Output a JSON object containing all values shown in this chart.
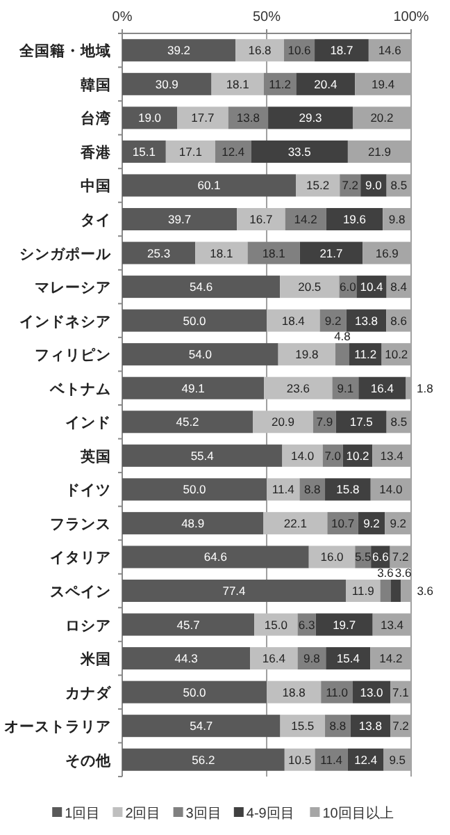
{
  "chart_data": {
    "type": "bar",
    "orientation": "horizontal",
    "stacked": true,
    "grid": "x",
    "legend": "bottom",
    "xlim": [
      0,
      100
    ],
    "xticks": [
      {
        "value": 0,
        "label": "0%"
      },
      {
        "value": 50,
        "label": "50%"
      },
      {
        "value": 100,
        "label": "100%"
      }
    ],
    "categories": [
      "全国籍・地域",
      "韓国",
      "台湾",
      "香港",
      "中国",
      "タイ",
      "シンガポール",
      "マレーシア",
      "インドネシア",
      "フィリピン",
      "ベトナム",
      "インド",
      "英国",
      "ドイツ",
      "フランス",
      "イタリア",
      "スペイン",
      "ロシア",
      "米国",
      "カナダ",
      "オーストラリア",
      "その他"
    ],
    "series": [
      {
        "name": "1回目",
        "color": "#595959",
        "values": [
          39.2,
          30.9,
          19.0,
          15.1,
          60.1,
          39.7,
          25.3,
          54.6,
          50.0,
          54.0,
          49.1,
          45.2,
          55.4,
          50.0,
          48.9,
          64.6,
          77.4,
          45.7,
          44.3,
          50.0,
          54.7,
          56.2
        ],
        "value_labels": [
          "39.2",
          "30.9",
          "19.0",
          "15.1",
          "60.1",
          "39.7",
          "25.3",
          "54.6",
          "50.0",
          "54.0",
          "49.1",
          "45.2",
          "55.4",
          "50.0",
          "48.9",
          "64.6",
          "77.4",
          "45.7",
          "44.3",
          "50.0",
          "54.7",
          "56.2"
        ]
      },
      {
        "name": "2回目",
        "color": "#bfbfbf",
        "values": [
          16.8,
          18.1,
          17.7,
          17.1,
          15.2,
          16.7,
          18.1,
          20.5,
          18.4,
          19.8,
          23.6,
          20.9,
          14.0,
          11.4,
          22.1,
          16.0,
          11.9,
          15.0,
          16.4,
          18.8,
          15.5,
          10.5
        ],
        "value_labels": [
          "16.8",
          "18.1",
          "17.7",
          "17.1",
          "15.2",
          "16.7",
          "18.1",
          "20.5",
          "18.4",
          "19.8",
          "23.6",
          "20.9",
          "14.0",
          "11.4",
          "22.1",
          "16.0",
          "11.9",
          "15.0",
          "16.4",
          "18.8",
          "15.5",
          "10.5"
        ]
      },
      {
        "name": "3回目",
        "color": "#808080",
        "values": [
          10.6,
          11.2,
          13.8,
          12.4,
          7.2,
          14.2,
          18.1,
          6.0,
          9.2,
          4.8,
          9.1,
          7.9,
          7.0,
          8.8,
          10.7,
          5.5,
          3.6,
          6.3,
          9.8,
          11.0,
          8.8,
          11.4
        ],
        "value_labels": [
          "10.6",
          "11.2",
          "13.8",
          "12.4",
          "7.2",
          "14.2",
          "18.1",
          "6.0",
          "9.2",
          "4.8",
          "9.1",
          "7.9",
          "7.0",
          "8.8",
          "10.7",
          "5.5",
          "3.6",
          "6.3",
          "9.8",
          "11.0",
          "8.8",
          "11.4"
        ]
      },
      {
        "name": "4-9回目",
        "color": "#404040",
        "values": [
          18.7,
          20.4,
          29.3,
          33.5,
          9.0,
          19.6,
          21.7,
          10.4,
          13.8,
          11.2,
          16.4,
          17.5,
          10.2,
          15.8,
          9.2,
          6.6,
          3.6,
          19.7,
          15.4,
          13.0,
          13.8,
          12.4
        ],
        "value_labels": [
          "18.7",
          "20.4",
          "29.3",
          "33.5",
          "9.0",
          "19.6",
          "21.7",
          "10.4",
          "13.8",
          "11.2",
          "16.4",
          "17.5",
          "10.2",
          "15.8",
          "9.2",
          "6.6",
          "3.6",
          "19.7",
          "15.4",
          "13.0",
          "13.8",
          "12.4"
        ]
      },
      {
        "name": "10回目以上",
        "color": "#a6a6a6",
        "values": [
          14.6,
          19.4,
          20.2,
          21.9,
          8.5,
          9.8,
          16.9,
          8.4,
          8.6,
          10.2,
          1.8,
          8.5,
          13.4,
          14.0,
          9.2,
          7.2,
          3.6,
          13.4,
          14.2,
          7.1,
          7.2,
          9.5
        ],
        "value_labels": [
          "14.6",
          "19.4",
          "20.2",
          "21.9",
          "8.5",
          "9.8",
          "16.9",
          "8.4",
          "8.6",
          "10.2",
          "1.8",
          "8.5",
          "13.4",
          "14.0",
          "9.2",
          "7.2",
          "3.6",
          "13.4",
          "14.2",
          "7.1",
          "7.2",
          "9.5"
        ]
      }
    ]
  }
}
